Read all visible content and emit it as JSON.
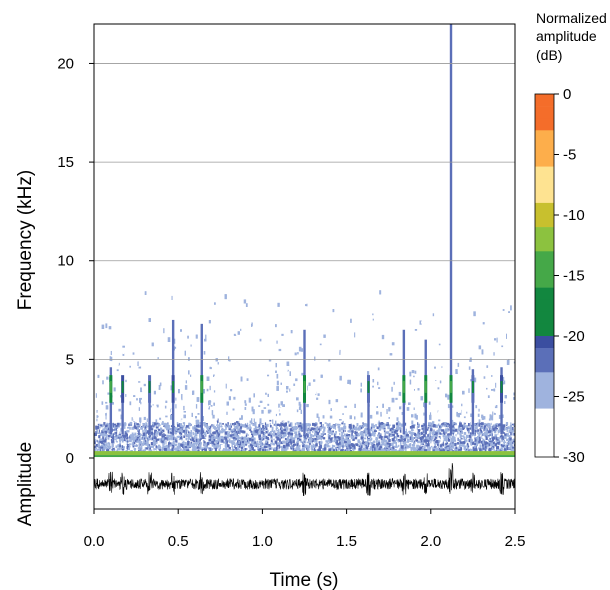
{
  "chart_data": {
    "type": "heatmap",
    "title": "",
    "xlabel": "Time (s)",
    "ylabel": "Frequency (kHz)",
    "amplitude_label": "Amplitude",
    "xlim": [
      0,
      2.5
    ],
    "ylim": [
      0,
      22
    ],
    "x_ticks": [
      {
        "value": 0.0,
        "label": "0.0"
      },
      {
        "value": 0.5,
        "label": "0.5"
      },
      {
        "value": 1.0,
        "label": "1.0"
      },
      {
        "value": 1.5,
        "label": "1.5"
      },
      {
        "value": 2.0,
        "label": "2.0"
      },
      {
        "value": 2.5,
        "label": "2.5"
      }
    ],
    "y_ticks": [
      {
        "value": 20,
        "label": "20"
      },
      {
        "value": 15,
        "label": "15"
      },
      {
        "value": 10,
        "label": "10"
      },
      {
        "value": 5,
        "label": "5"
      },
      {
        "value": 0,
        "label": "0"
      }
    ],
    "grid": {
      "horizontal": [
        5,
        10,
        15,
        20
      ]
    },
    "colorbar": {
      "title_lines": [
        "Normalized",
        "amplitude",
        "(dB)"
      ],
      "range": [
        -30,
        0
      ],
      "ticks": [
        {
          "value": 0,
          "label": "0"
        },
        {
          "value": -5,
          "label": "-5"
        },
        {
          "value": -10,
          "label": "-10"
        },
        {
          "value": -15,
          "label": "-15"
        },
        {
          "value": -20,
          "label": "-20"
        },
        {
          "value": -25,
          "label": "-25"
        },
        {
          "value": -30,
          "label": "-30"
        }
      ],
      "color_stops": [
        {
          "value": 0,
          "color": "#e41a1c"
        },
        {
          "value": -3,
          "color": "#f46d2a"
        },
        {
          "value": -6,
          "color": "#fdae4b"
        },
        {
          "value": -9,
          "color": "#fee391"
        },
        {
          "value": -10.5,
          "color": "#c8c02e"
        },
        {
          "value": -13,
          "color": "#8cc23f"
        },
        {
          "value": -16,
          "color": "#45a848"
        },
        {
          "value": -19.5,
          "color": "#12873f"
        },
        {
          "value": -20.5,
          "color": "#3b4ea0"
        },
        {
          "value": -23,
          "color": "#5b6fb8"
        },
        {
          "value": -26,
          "color": "#9fb3de"
        },
        {
          "value": -30,
          "color": "#ffffff"
        }
      ]
    },
    "events": [
      {
        "t": 0.1,
        "f_top": 4.6,
        "level": -18
      },
      {
        "t": 0.17,
        "f_top": 4.0,
        "level": -20
      },
      {
        "t": 0.33,
        "f_top": 4.0,
        "level": -21
      },
      {
        "t": 0.47,
        "f_top": 7.0,
        "level": -20
      },
      {
        "t": 0.64,
        "f_top": 6.8,
        "level": -19
      },
      {
        "t": 1.25,
        "f_top": 6.5,
        "level": -18
      },
      {
        "t": 1.63,
        "f_top": 4.2,
        "level": -22
      },
      {
        "t": 1.84,
        "f_top": 6.5,
        "level": -19
      },
      {
        "t": 1.97,
        "f_top": 6.0,
        "level": -19
      },
      {
        "t": 2.12,
        "f_top": 22.0,
        "level": -17
      },
      {
        "t": 2.25,
        "f_top": 4.5,
        "level": -21
      },
      {
        "t": 2.42,
        "f_top": 4.6,
        "level": -20
      }
    ],
    "band_floor": {
      "f_min": 0.15,
      "f_max": 0.35,
      "level": -11
    }
  }
}
